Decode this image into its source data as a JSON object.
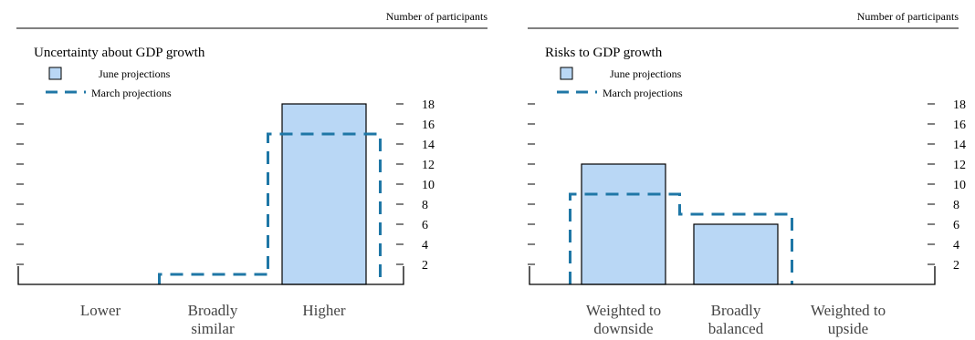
{
  "chart_data": [
    {
      "type": "bar",
      "title": "Uncertainty about GDP growth",
      "unit_label": "Number of participants",
      "categories": [
        [
          "Lower"
        ],
        [
          "Broadly",
          "similar"
        ],
        [
          "Higher"
        ]
      ],
      "ylim": [
        0,
        20
      ],
      "yticks": [
        2,
        4,
        6,
        8,
        10,
        12,
        14,
        16,
        18
      ],
      "series": [
        {
          "name": "June projections",
          "style": "bar",
          "color": "#b9d7f5",
          "values": [
            0,
            0,
            18
          ]
        },
        {
          "name": "March projections",
          "style": "dashed-step",
          "color": "#1f77a6",
          "values": [
            0,
            1,
            15
          ]
        }
      ]
    },
    {
      "type": "bar",
      "title": "Risks to GDP growth",
      "unit_label": "Number of participants",
      "categories": [
        [
          "Weighted to",
          "downside"
        ],
        [
          "Broadly",
          "balanced"
        ],
        [
          "Weighted to",
          "upside"
        ]
      ],
      "ylim": [
        0,
        20
      ],
      "yticks": [
        2,
        4,
        6,
        8,
        10,
        12,
        14,
        16,
        18
      ],
      "series": [
        {
          "name": "June projections",
          "style": "bar",
          "color": "#b9d7f5",
          "values": [
            12,
            6,
            0
          ]
        },
        {
          "name": "March projections",
          "style": "dashed-step",
          "color": "#1f77a6",
          "values": [
            9,
            7,
            0
          ]
        }
      ]
    }
  ]
}
